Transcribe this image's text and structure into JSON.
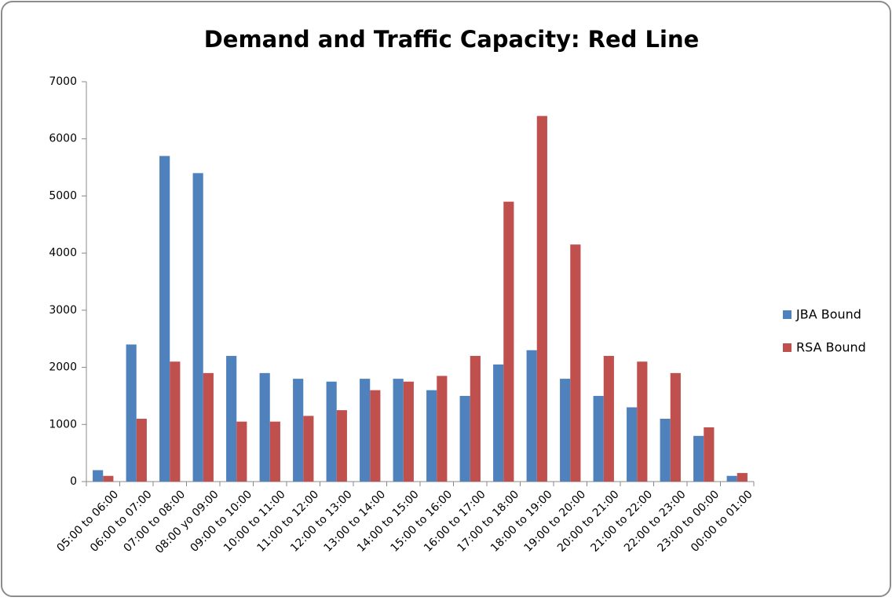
{
  "chart_data": {
    "type": "bar",
    "title": "Demand and Traffic Capacity: Red Line",
    "categories": [
      "05:00 to 06:00",
      "06:00 to 07:00",
      "07:00 to 08:00",
      "08:00 yo 09:00",
      "09:00 to 10:00",
      "10:00 to 11:00",
      "11:00 to 12:00",
      "12:00 to 13:00",
      "13:00 to 14:00",
      "14:00 to 15:00",
      "15:00 to 16:00",
      "16:00 to 17:00",
      "17:00 to 18:00",
      "18:00 to 19:00",
      "19:00 to 20:00",
      "20:00 to 21:00",
      "21:00 to 22:00",
      "22:00 to 23:00",
      "23:00 to 00:00",
      "00:00 to 01:00"
    ],
    "series": [
      {
        "name": "JBA Bound",
        "color": "#4f81bd",
        "values": [
          200,
          2400,
          5700,
          5400,
          2200,
          1900,
          1800,
          1750,
          1800,
          1800,
          1600,
          1500,
          2050,
          2300,
          1800,
          1500,
          1300,
          1100,
          800,
          100
        ]
      },
      {
        "name": "RSA Bound",
        "color": "#c0504d",
        "values": [
          100,
          1100,
          2100,
          1900,
          1050,
          1050,
          1150,
          1250,
          1600,
          1750,
          1850,
          2200,
          4900,
          6400,
          4150,
          2200,
          2100,
          1900,
          950,
          150
        ]
      }
    ],
    "ylim": [
      0,
      7000
    ],
    "yticks": [
      0,
      1000,
      2000,
      3000,
      4000,
      5000,
      6000,
      7000
    ],
    "grid": false,
    "legend": "right"
  }
}
